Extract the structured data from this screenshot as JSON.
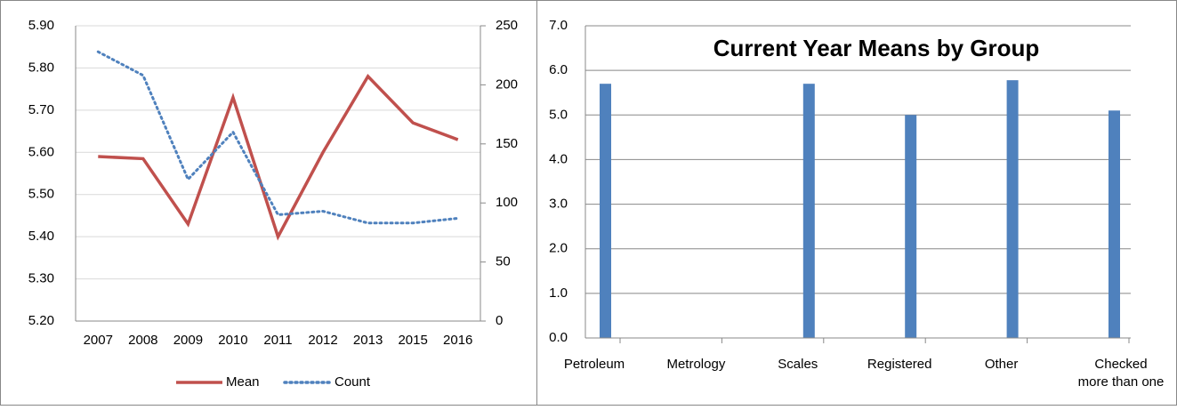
{
  "chart_data": [
    {
      "type": "line",
      "categories": [
        "2007",
        "2008",
        "2009",
        "2010",
        "2011",
        "2012",
        "2013",
        "2015",
        "2016"
      ],
      "series": [
        {
          "name": "Mean",
          "color": "#c0504d",
          "style": "solid",
          "values": [
            5.59,
            5.585,
            5.43,
            5.73,
            5.4,
            5.6,
            5.78,
            5.67,
            5.63
          ]
        },
        {
          "name": "Count",
          "color": "#4f81bd",
          "style": "dotted",
          "axis": "y2",
          "values": [
            228,
            208,
            120,
            160,
            90,
            93,
            83,
            83,
            87
          ]
        }
      ],
      "ylim": [
        5.2,
        5.9
      ],
      "yticks": [
        {
          "value": 5.2,
          "label": "5.20"
        },
        {
          "value": 5.3,
          "label": "5.30"
        },
        {
          "value": 5.4,
          "label": "5.40"
        },
        {
          "value": 5.5,
          "label": "5.50"
        },
        {
          "value": 5.6,
          "label": "5.60"
        },
        {
          "value": 5.7,
          "label": "5.70"
        },
        {
          "value": 5.8,
          "label": "5.80"
        },
        {
          "value": 5.9,
          "label": "5.90"
        }
      ],
      "y2lim": [
        0,
        250
      ],
      "y2ticks": [
        0,
        50,
        100,
        150,
        200,
        250
      ],
      "grid": true,
      "legend": "bottom"
    },
    {
      "type": "bar",
      "title": "Current Year Means by Group",
      "categories": [
        "Petroleum",
        "Metrology",
        "Scales",
        "Registered",
        "Other",
        "Checked more than one"
      ],
      "values": [
        5.7,
        null,
        5.7,
        5.0,
        5.78,
        5.1
      ],
      "color": "#4f81bd",
      "ylim": [
        0,
        7
      ],
      "yticks": [
        {
          "value": 0,
          "label": "0.0"
        },
        {
          "value": 1,
          "label": "1.0"
        },
        {
          "value": 2,
          "label": "2.0"
        },
        {
          "value": 3,
          "label": "3.0"
        },
        {
          "value": 4,
          "label": "4.0"
        },
        {
          "value": 5,
          "label": "5.0"
        },
        {
          "value": 6,
          "label": "6.0"
        },
        {
          "value": 7,
          "label": "7.0"
        }
      ],
      "grid": true
    }
  ]
}
